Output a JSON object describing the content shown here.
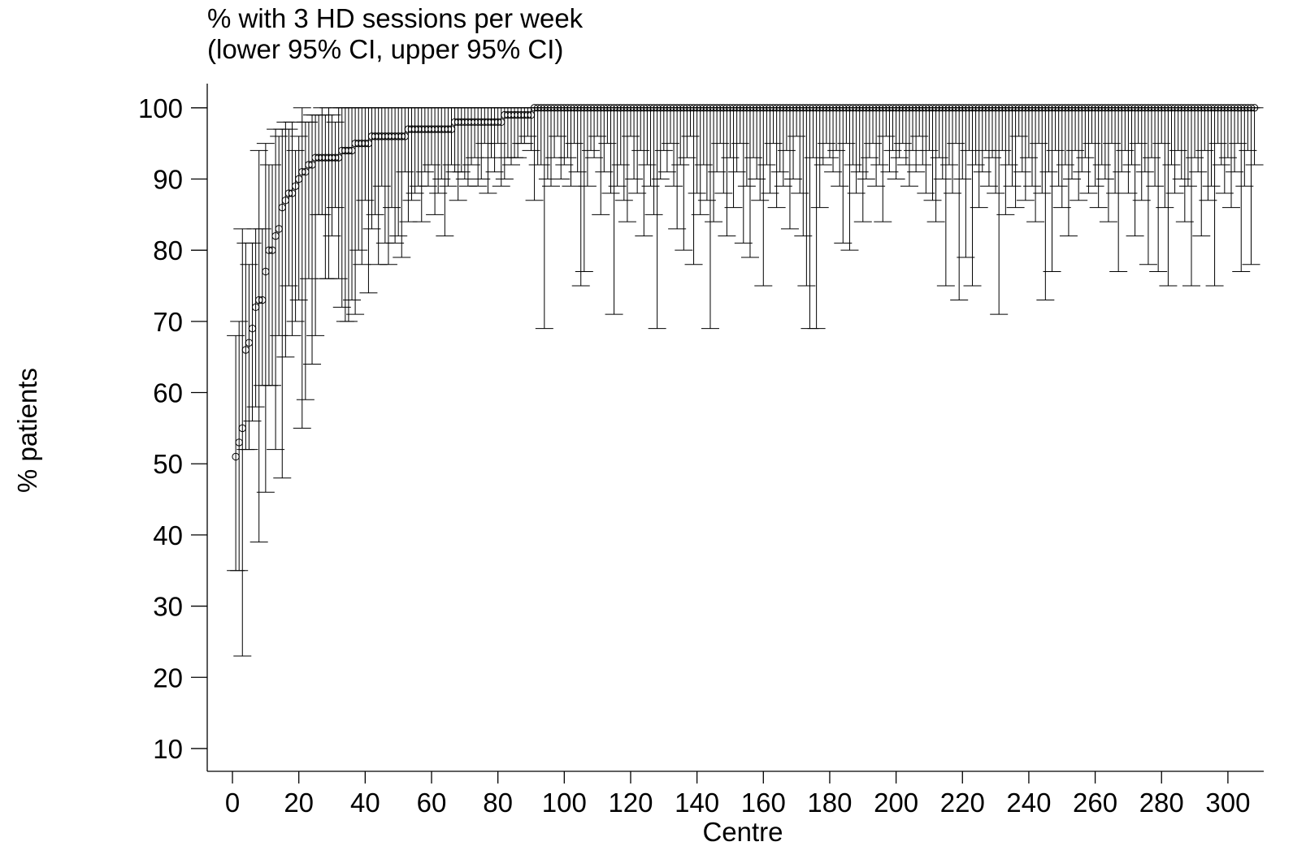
{
  "chart_data": {
    "type": "errorbar",
    "title": "% with 3 HD sessions per week",
    "subtitle": "(lower 95% CI, upper 95% CI)",
    "x_label": "Centre",
    "y_label": "% patients",
    "color": "#000000",
    "xlim": [
      -7.6,
      310.8
    ],
    "ylim": [
      6.8,
      103.4
    ],
    "xticks": [
      0,
      20,
      40,
      60,
      80,
      100,
      120,
      140,
      160,
      180,
      200,
      220,
      240,
      260,
      280,
      300
    ],
    "yticks": [
      10,
      20,
      30,
      40,
      50,
      60,
      70,
      80,
      90,
      100
    ],
    "x": [
      1,
      2,
      3,
      4,
      5,
      6,
      7,
      8,
      9,
      10,
      11,
      12,
      13,
      14,
      15,
      16,
      17,
      18,
      19,
      20,
      21,
      22,
      23,
      24,
      25,
      26,
      27,
      28,
      29,
      30,
      31,
      32,
      33,
      34,
      35,
      36,
      37,
      38,
      39,
      40,
      41,
      42,
      43,
      44,
      45,
      46,
      47,
      48,
      49,
      50,
      51,
      52,
      53,
      54,
      55,
      56,
      57,
      58,
      59,
      60,
      61,
      62,
      63,
      64,
      65,
      66,
      67,
      68,
      69,
      70,
      71,
      72,
      73,
      74,
      75,
      76,
      77,
      78,
      79,
      80,
      81,
      82,
      83,
      84,
      85,
      86,
      87,
      88,
      89,
      90,
      91,
      92,
      93,
      94,
      95,
      96,
      97,
      98,
      99,
      100,
      101,
      102,
      103,
      104,
      105,
      106,
      107,
      108,
      109,
      110,
      111,
      112,
      113,
      114,
      115,
      116,
      117,
      118,
      119,
      120,
      121,
      122,
      123,
      124,
      125,
      126,
      127,
      128,
      129,
      130,
      131,
      132,
      133,
      134,
      135,
      136,
      137,
      138,
      139,
      140,
      141,
      142,
      143,
      144,
      145,
      146,
      147,
      148,
      149,
      150,
      151,
      152,
      153,
      154,
      155,
      156,
      157,
      158,
      159,
      160,
      161,
      162,
      163,
      164,
      165,
      166,
      167,
      168,
      169,
      170,
      171,
      172,
      173,
      174,
      175,
      176,
      177,
      178,
      179,
      180,
      181,
      182,
      183,
      184,
      185,
      186,
      187,
      188,
      189,
      190,
      191,
      192,
      193,
      194,
      195,
      196,
      197,
      198,
      199,
      200,
      201,
      202,
      203,
      204,
      205,
      206,
      207,
      208,
      209,
      210,
      211,
      212,
      213,
      214,
      215,
      216,
      217,
      218,
      219,
      220,
      221,
      222,
      223,
      224,
      225,
      226,
      227,
      228,
      229,
      230,
      231,
      232,
      233,
      234,
      235,
      236,
      237,
      238,
      239,
      240,
      241,
      242,
      243,
      244,
      245,
      246,
      247,
      248,
      249,
      250,
      251,
      252,
      253,
      254,
      255,
      256,
      257,
      258,
      259,
      260,
      261,
      262,
      263,
      264,
      265,
      266,
      267,
      268,
      269,
      270,
      271,
      272,
      273,
      274,
      275,
      276,
      277,
      278,
      279,
      280,
      281,
      282,
      283,
      284,
      285,
      286,
      287,
      288,
      289,
      290,
      291,
      292,
      293,
      294,
      295,
      296,
      297,
      298,
      299,
      300,
      301,
      302,
      303,
      304,
      305,
      306,
      307,
      308
    ],
    "values": [
      51,
      53,
      55,
      66,
      67,
      69,
      72,
      73,
      73,
      77,
      80,
      80,
      82,
      83,
      86,
      87,
      88,
      88,
      89,
      90,
      91,
      91,
      92,
      92,
      93,
      93,
      93,
      93,
      93,
      93,
      93,
      93,
      94,
      94,
      94,
      94,
      95,
      95,
      95,
      95,
      95,
      96,
      96,
      96,
      96,
      96,
      96,
      96,
      96,
      96,
      96,
      96,
      97,
      97,
      97,
      97,
      97,
      97,
      97,
      97,
      97,
      97,
      97,
      97,
      97,
      97,
      98,
      98,
      98,
      98,
      98,
      98,
      98,
      98,
      98,
      98,
      98,
      98,
      98,
      98,
      98,
      99,
      99,
      99,
      99,
      99,
      99,
      99,
      99,
      99,
      100,
      100,
      100,
      100,
      100,
      100,
      100,
      100,
      100,
      100,
      100,
      100,
      100,
      100,
      100,
      100,
      100,
      100,
      100,
      100,
      100,
      100,
      100,
      100,
      100,
      100,
      100,
      100,
      100,
      100,
      100,
      100,
      100,
      100,
      100,
      100,
      100,
      100,
      100,
      100,
      100,
      100,
      100,
      100,
      100,
      100,
      100,
      100,
      100,
      100,
      100,
      100,
      100,
      100,
      100,
      100,
      100,
      100,
      100,
      100,
      100,
      100,
      100,
      100,
      100,
      100,
      100,
      100,
      100,
      100,
      100,
      100,
      100,
      100,
      100,
      100,
      100,
      100,
      100,
      100,
      100,
      100,
      100,
      100,
      100,
      100,
      100,
      100,
      100,
      100,
      100,
      100,
      100,
      100,
      100,
      100,
      100,
      100,
      100,
      100,
      100,
      100,
      100,
      100,
      100,
      100,
      100,
      100,
      100,
      100,
      100,
      100,
      100,
      100,
      100,
      100,
      100,
      100,
      100,
      100,
      100,
      100,
      100,
      100,
      100,
      100,
      100,
      100,
      100,
      100,
      100,
      100,
      100,
      100,
      100,
      100,
      100,
      100,
      100,
      100,
      100,
      100,
      100,
      100,
      100,
      100,
      100,
      100,
      100,
      100,
      100,
      100,
      100,
      100,
      100,
      100,
      100,
      100,
      100,
      100,
      100,
      100,
      100,
      100,
      100,
      100,
      100,
      100,
      100,
      100,
      100,
      100,
      100,
      100,
      100,
      100,
      100,
      100,
      100,
      100,
      100,
      100,
      100,
      100,
      100,
      100,
      100,
      100,
      100,
      100,
      100,
      100,
      100,
      100,
      100,
      100,
      100,
      100,
      100,
      100,
      100,
      100,
      100,
      100,
      100,
      100,
      100,
      100,
      100,
      100,
      100,
      100,
      100,
      100,
      100,
      100,
      100,
      100
    ],
    "lower": [
      35,
      35,
      23,
      52,
      52,
      56,
      58,
      39,
      61,
      46,
      61,
      61,
      52,
      68,
      48,
      65,
      75,
      68,
      70,
      73,
      55,
      59,
      76,
      64,
      68,
      85,
      85,
      76,
      76,
      82,
      86,
      76,
      72,
      70,
      70,
      73,
      71,
      80,
      78,
      87,
      74,
      83,
      85,
      78,
      89,
      81,
      78,
      86,
      81,
      82,
      79,
      91,
      84,
      87,
      88,
      89,
      84,
      91,
      89,
      92,
      85,
      88,
      90,
      82,
      89,
      92,
      91,
      87,
      91,
      90,
      89,
      92,
      93,
      89,
      90,
      95,
      88,
      93,
      91,
      95,
      89,
      90,
      93,
      92,
      93,
      93,
      95,
      95,
      96,
      94,
      87,
      92,
      92,
      69,
      90,
      89,
      93,
      96,
      90,
      92,
      93,
      89,
      95,
      91,
      75,
      77,
      89,
      94,
      93,
      96,
      85,
      91,
      95,
      88,
      71,
      89,
      92,
      87,
      84,
      96,
      90,
      88,
      94,
      82,
      92,
      89,
      85,
      69,
      90,
      94,
      91,
      95,
      89,
      83,
      92,
      80,
      93,
      96,
      78,
      88,
      85,
      92,
      87,
      69,
      84,
      91,
      95,
      88,
      82,
      93,
      86,
      91,
      95,
      81,
      89,
      79,
      93,
      90,
      87,
      75,
      92,
      88,
      95,
      86,
      91,
      89,
      94,
      83,
      90,
      96,
      88,
      82,
      75,
      69,
      93,
      69,
      86,
      92,
      95,
      93,
      91,
      94,
      89,
      81,
      95,
      80,
      92,
      88,
      91,
      84,
      90,
      93,
      95,
      89,
      92,
      84,
      96,
      91,
      94,
      90,
      93,
      95,
      92,
      89,
      94,
      91,
      96,
      92,
      88,
      94,
      87,
      84,
      93,
      90,
      75,
      92,
      88,
      95,
      73,
      90,
      79,
      94,
      75,
      92,
      86,
      91,
      94,
      89,
      93,
      88,
      71,
      94,
      85,
      92,
      89,
      86,
      96,
      91,
      87,
      93,
      89,
      84,
      95,
      88,
      73,
      91,
      77,
      94,
      89,
      86,
      92,
      82,
      90,
      94,
      87,
      91,
      93,
      88,
      95,
      89,
      86,
      92,
      90,
      84,
      95,
      88,
      77,
      91,
      94,
      88,
      92,
      82,
      95,
      87,
      91,
      78,
      93,
      89,
      77,
      95,
      86,
      75,
      92,
      88,
      94,
      90,
      84,
      89,
      75,
      93,
      91,
      82,
      94,
      87,
      89,
      75,
      95,
      92,
      88,
      93,
      86,
      91,
      95,
      77,
      89,
      94,
      78,
      92
    ],
    "upper": [
      68,
      70,
      83,
      81,
      78,
      81,
      83,
      94,
      83,
      95,
      92,
      92,
      97,
      96,
      97,
      98,
      97,
      98,
      94,
      96,
      100,
      98,
      98,
      99,
      99,
      99,
      100,
      99,
      100,
      99,
      98,
      100,
      100,
      100,
      100,
      100,
      100,
      100,
      100,
      100,
      100,
      100,
      100,
      100,
      100,
      100,
      100,
      100,
      100,
      100,
      100,
      100,
      100,
      100,
      100,
      100,
      100,
      100,
      100,
      100,
      100,
      100,
      100,
      100,
      100,
      100,
      100,
      100,
      100,
      100,
      100,
      100,
      100,
      100,
      100,
      100,
      100,
      100,
      100,
      100,
      100,
      100,
      100,
      100,
      100,
      100,
      100,
      100,
      100,
      100,
      100,
      100,
      100,
      100,
      100,
      100,
      100,
      100,
      100,
      100,
      100,
      100,
      100,
      100,
      100,
      100,
      100,
      100,
      100,
      100,
      100,
      100,
      100,
      100,
      100,
      100,
      100,
      100,
      100,
      100,
      100,
      100,
      100,
      100,
      100,
      100,
      100,
      100,
      100,
      100,
      100,
      100,
      100,
      100,
      100,
      100,
      100,
      100,
      100,
      100,
      100,
      100,
      100,
      100,
      100,
      100,
      100,
      100,
      100,
      100,
      100,
      100,
      100,
      100,
      100,
      100,
      100,
      100,
      100,
      100,
      100,
      100,
      100,
      100,
      100,
      100,
      100,
      100,
      100,
      100,
      100,
      100,
      100,
      100,
      100,
      100,
      100,
      100,
      100,
      100,
      100,
      100,
      100,
      100,
      100,
      100,
      100,
      100,
      100,
      100,
      100,
      100,
      100,
      100,
      100,
      100,
      100,
      100,
      100,
      100,
      100,
      100,
      100,
      100,
      100,
      100,
      100,
      100,
      100,
      100,
      100,
      100,
      100,
      100,
      100,
      100,
      100,
      100,
      100,
      100,
      100,
      100,
      100,
      100,
      100,
      100,
      100,
      100,
      100,
      100,
      100,
      100,
      100,
      100,
      100,
      100,
      100,
      100,
      100,
      100,
      100,
      100,
      100,
      100,
      100,
      100,
      100,
      100,
      100,
      100,
      100,
      100,
      100,
      100,
      100,
      100,
      100,
      100,
      100,
      100,
      100,
      100,
      100,
      100,
      100,
      100,
      100,
      100,
      100,
      100,
      100,
      100,
      100,
      100,
      100,
      100,
      100,
      100,
      100,
      100,
      100,
      100,
      100,
      100,
      100,
      100,
      100,
      100,
      100,
      100,
      100,
      100,
      100,
      100,
      100,
      100,
      100,
      100,
      100,
      100,
      100,
      100,
      100,
      100,
      100,
      100,
      100,
      100
    ]
  }
}
